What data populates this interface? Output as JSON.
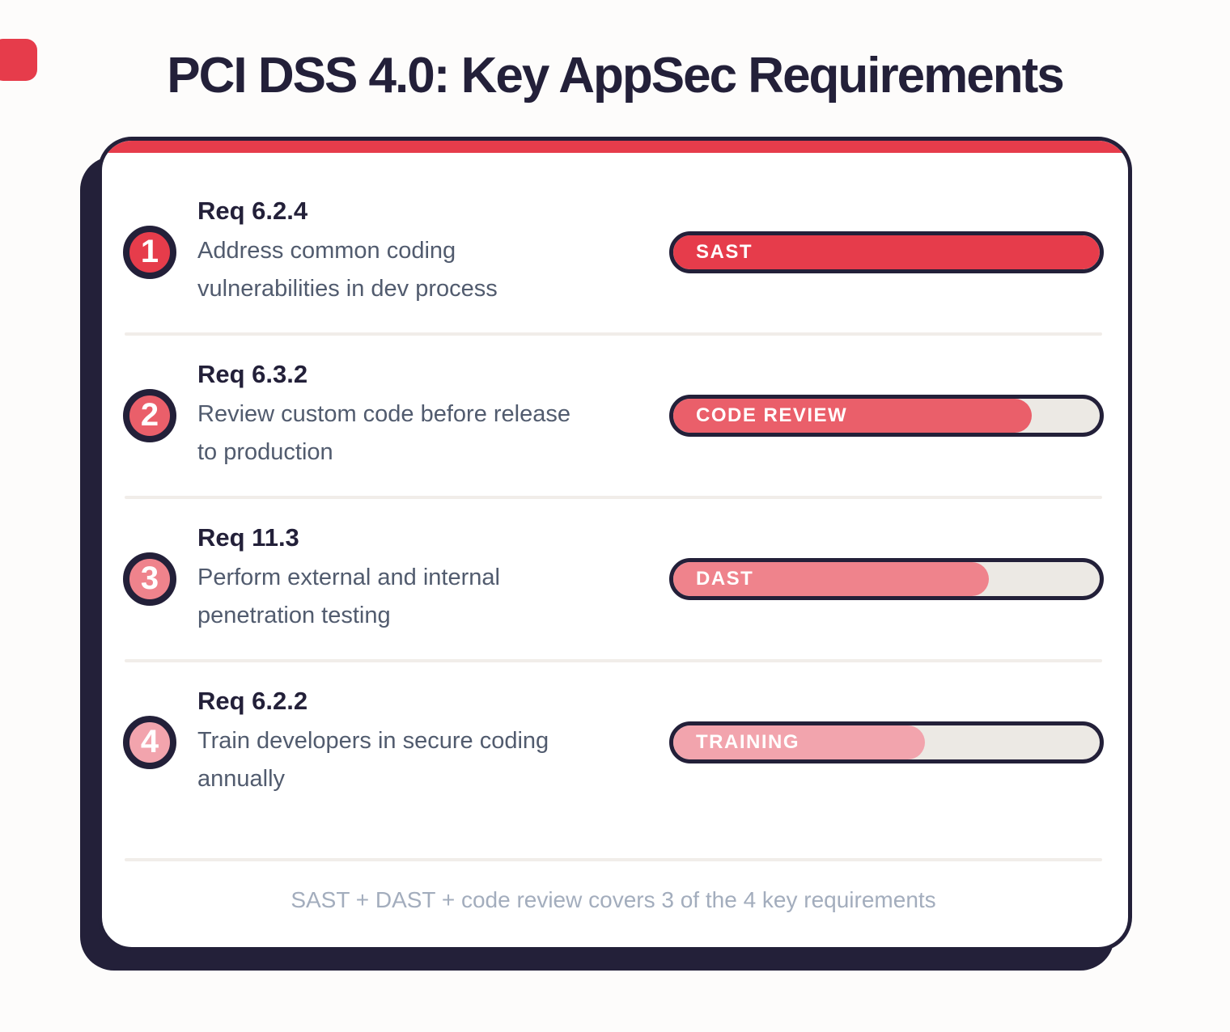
{
  "page": {
    "title": "PCI DSS 4.0: Key AppSec Requirements",
    "summary": "SAST + DAST + code review covers 3 of the 4 key requirements"
  },
  "colors": {
    "ink": "#232039",
    "accent_red": "#e63c4b",
    "bar_track": "#ece9e4",
    "divider": "#f1ede9",
    "description_text": "#515b6e",
    "summary_text": "#a3adbd"
  },
  "requirements": [
    {
      "number": "1",
      "req_id": "Req 6.2.4",
      "description": "Address common coding vulnerabilities in dev process",
      "bar_label": "SAST",
      "coverage_percent": 100,
      "fill_width": "100%",
      "color": "#e63c4b"
    },
    {
      "number": "2",
      "req_id": "Req 6.3.2",
      "description": "Review custom code before release to production",
      "bar_label": "CODE REVIEW",
      "coverage_percent": 84,
      "fill_width": "84%",
      "color": "#ea5f6a"
    },
    {
      "number": "3",
      "req_id": "Req 11.3",
      "description": "Perform external and internal penetration testing",
      "bar_label": "DAST",
      "coverage_percent": 74,
      "fill_width": "74%",
      "color": "#ef838c"
    },
    {
      "number": "4",
      "req_id": "Req 6.2.2",
      "description": "Train developers in secure coding annually",
      "bar_label": "TRAINING",
      "coverage_percent": 59,
      "fill_width": "59%",
      "color": "#f2a4ad"
    }
  ]
}
